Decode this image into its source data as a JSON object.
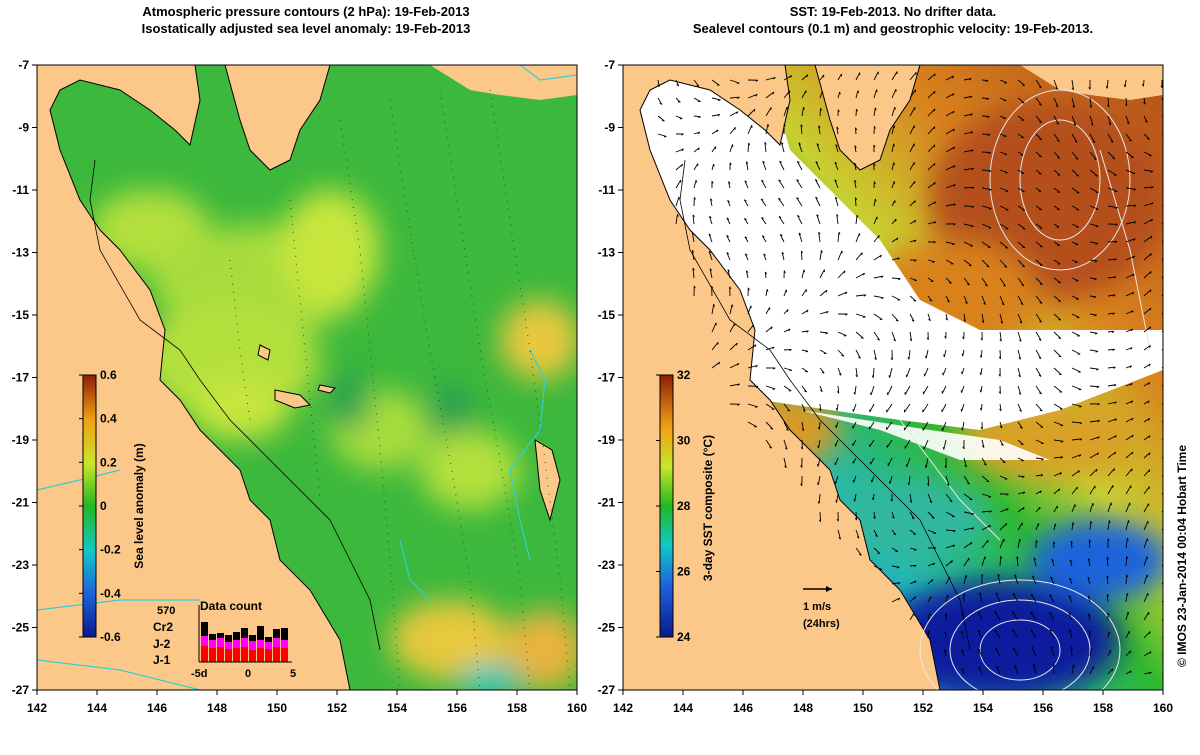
{
  "left_panel": {
    "title_line1": "Atmospheric pressure contours (2 hPa): 19-Feb-2013",
    "title_line2": "Isostatically adjusted sea level anomaly: 19-Feb-2013",
    "colorbar": {
      "label": "Sea level anomaly (m)",
      "ticks": [
        "0.6",
        "0.4",
        "0.2",
        "0",
        "-0.2",
        "-0.4",
        "-0.6"
      ]
    },
    "data_count": {
      "title": "Data count",
      "top_number": "570",
      "series_labels": [
        "Cr2",
        "J-2",
        "J-1"
      ],
      "series_colors": [
        "#000000",
        "#ff00ff",
        "#ff0000"
      ],
      "axis_labels": [
        "-5d",
        "0",
        "5"
      ]
    }
  },
  "right_panel": {
    "title_line1": "SST: 19-Feb-2013. No drifter data.",
    "title_line2": "Sealevel contours (0.1 m) and geostrophic velocity: 19-Feb-2013.",
    "colorbar": {
      "label": "3-day SST composite (°C)",
      "ticks": [
        "32",
        "30",
        "28",
        "26",
        "24"
      ]
    },
    "velocity_scale": {
      "line1": "1 m/s",
      "line2": "(24hrs)"
    }
  },
  "axes": {
    "x_ticks": [
      "142",
      "144",
      "146",
      "148",
      "150",
      "152",
      "154",
      "156",
      "158",
      "160"
    ],
    "y_ticks": [
      "-7",
      "-9",
      "-11",
      "-13",
      "-15",
      "-17",
      "-19",
      "-21",
      "-23",
      "-25",
      "-27"
    ],
    "x_range": [
      142,
      160
    ],
    "y_range": [
      -27,
      -7
    ]
  },
  "credit": "© IMOS 23-Jan-2014 00:04 Hobart Time",
  "colors": {
    "land": "#fcc88a",
    "ocean_green": "#3cb83c",
    "ocean_lime": "#a8dc3c",
    "sst_warm": "#d2691e",
    "sst_cool": "#1e64dc",
    "cloud": "#ffffff"
  }
}
